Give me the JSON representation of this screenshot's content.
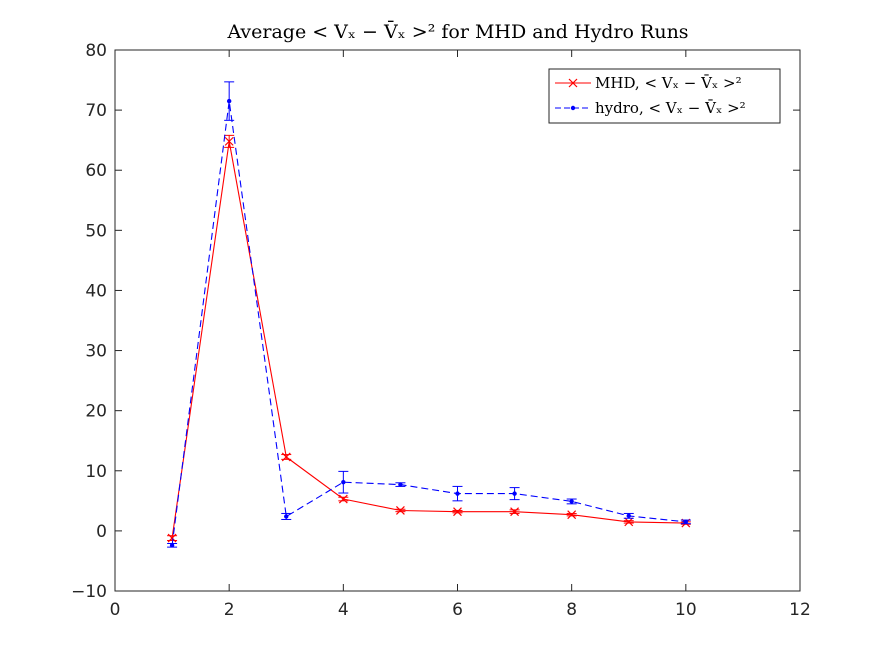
{
  "chart_data": {
    "type": "line",
    "title": "Average < Vₓ − V̄ₓ >² for MHD and Hydro Runs",
    "xlim": [
      0,
      12
    ],
    "ylim": [
      -10,
      80
    ],
    "xticks": [
      0,
      2,
      4,
      6,
      8,
      10,
      12
    ],
    "yticks": [
      -10,
      0,
      10,
      20,
      30,
      40,
      50,
      60,
      70,
      80
    ],
    "xtick_labels": [
      "0",
      "2",
      "4",
      "6",
      "8",
      "10",
      "12"
    ],
    "ytick_labels": [
      "−10",
      "0",
      "10",
      "20",
      "30",
      "40",
      "50",
      "60",
      "70",
      "80"
    ],
    "grid": false,
    "legend_position": "top-right",
    "series": [
      {
        "name": "MHD, < Vₓ − V̄ₓ >²",
        "color": "#ff0000",
        "line": "solid",
        "marker": "x",
        "x": [
          1,
          2,
          3,
          4,
          5,
          6,
          7,
          8,
          9,
          10
        ],
        "y": [
          -1.2,
          64.8,
          12.3,
          5.3,
          3.4,
          3.2,
          3.2,
          2.7,
          1.5,
          1.3
        ],
        "err": [
          0.4,
          1.0,
          0.4,
          0.3,
          0.2,
          0.2,
          0.3,
          0.2,
          0.2,
          0.2
        ]
      },
      {
        "name": "hydro, < Vₓ − V̄ₓ >²",
        "color": "#0000ff",
        "line": "dashed",
        "marker": "dot",
        "x": [
          1,
          2,
          3,
          4,
          5,
          6,
          7,
          8,
          9,
          10
        ],
        "y": [
          -2.4,
          71.5,
          2.4,
          8.1,
          7.7,
          6.2,
          6.2,
          4.9,
          2.5,
          1.5
        ],
        "err": [
          0.3,
          3.2,
          0.5,
          1.8,
          0.3,
          1.2,
          1.0,
          0.4,
          0.4,
          0.3
        ]
      }
    ]
  }
}
